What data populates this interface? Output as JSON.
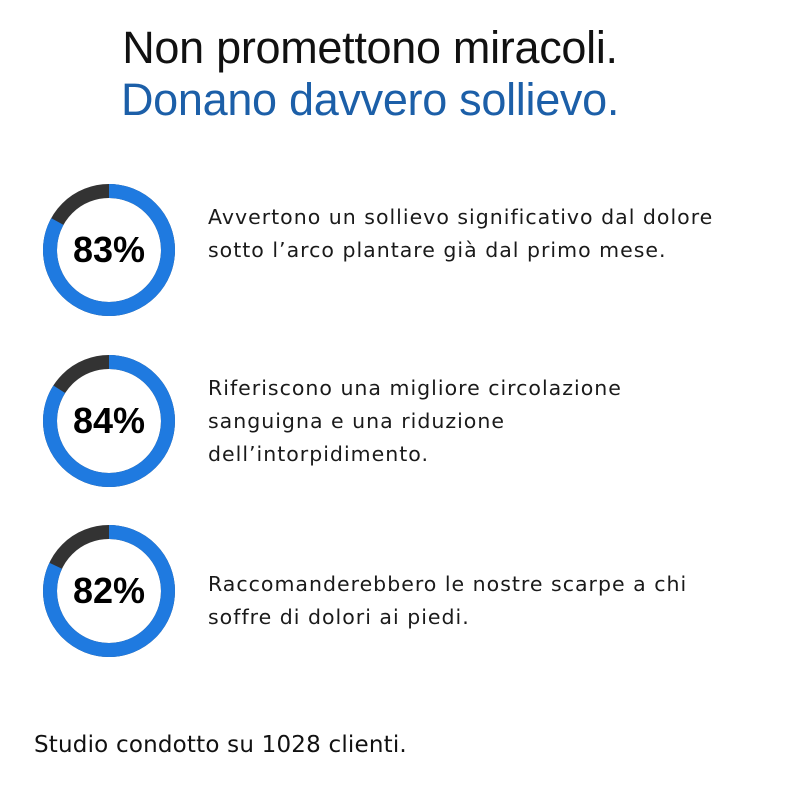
{
  "headline": {
    "line1": "Non promettono miracoli.",
    "line2_prefix": "Donano davvero ",
    "line2_highlight": "sollievo",
    "line2_suffix": "."
  },
  "colors": {
    "accent": "#1c5fa8",
    "ring_fill": "#1f7ae0",
    "ring_track": "#333333",
    "underline": "#4d94ee"
  },
  "stats": [
    {
      "percent_label": "83%",
      "percent": 83,
      "description": "Avvertono un sollievo significativo dal dolore sotto l’arco plantare già dal primo mese."
    },
    {
      "percent_label": "84%",
      "percent": 84,
      "description": "Riferiscono una migliore circolazione sanguigna e una riduzione dell’intorpidimento."
    },
    {
      "percent_label": "82%",
      "percent": 82,
      "description": "Raccomanderebbero le nostre scarpe a chi soffre di dolori ai piedi."
    }
  ],
  "footer": "Studio condotto su 1028 clienti."
}
